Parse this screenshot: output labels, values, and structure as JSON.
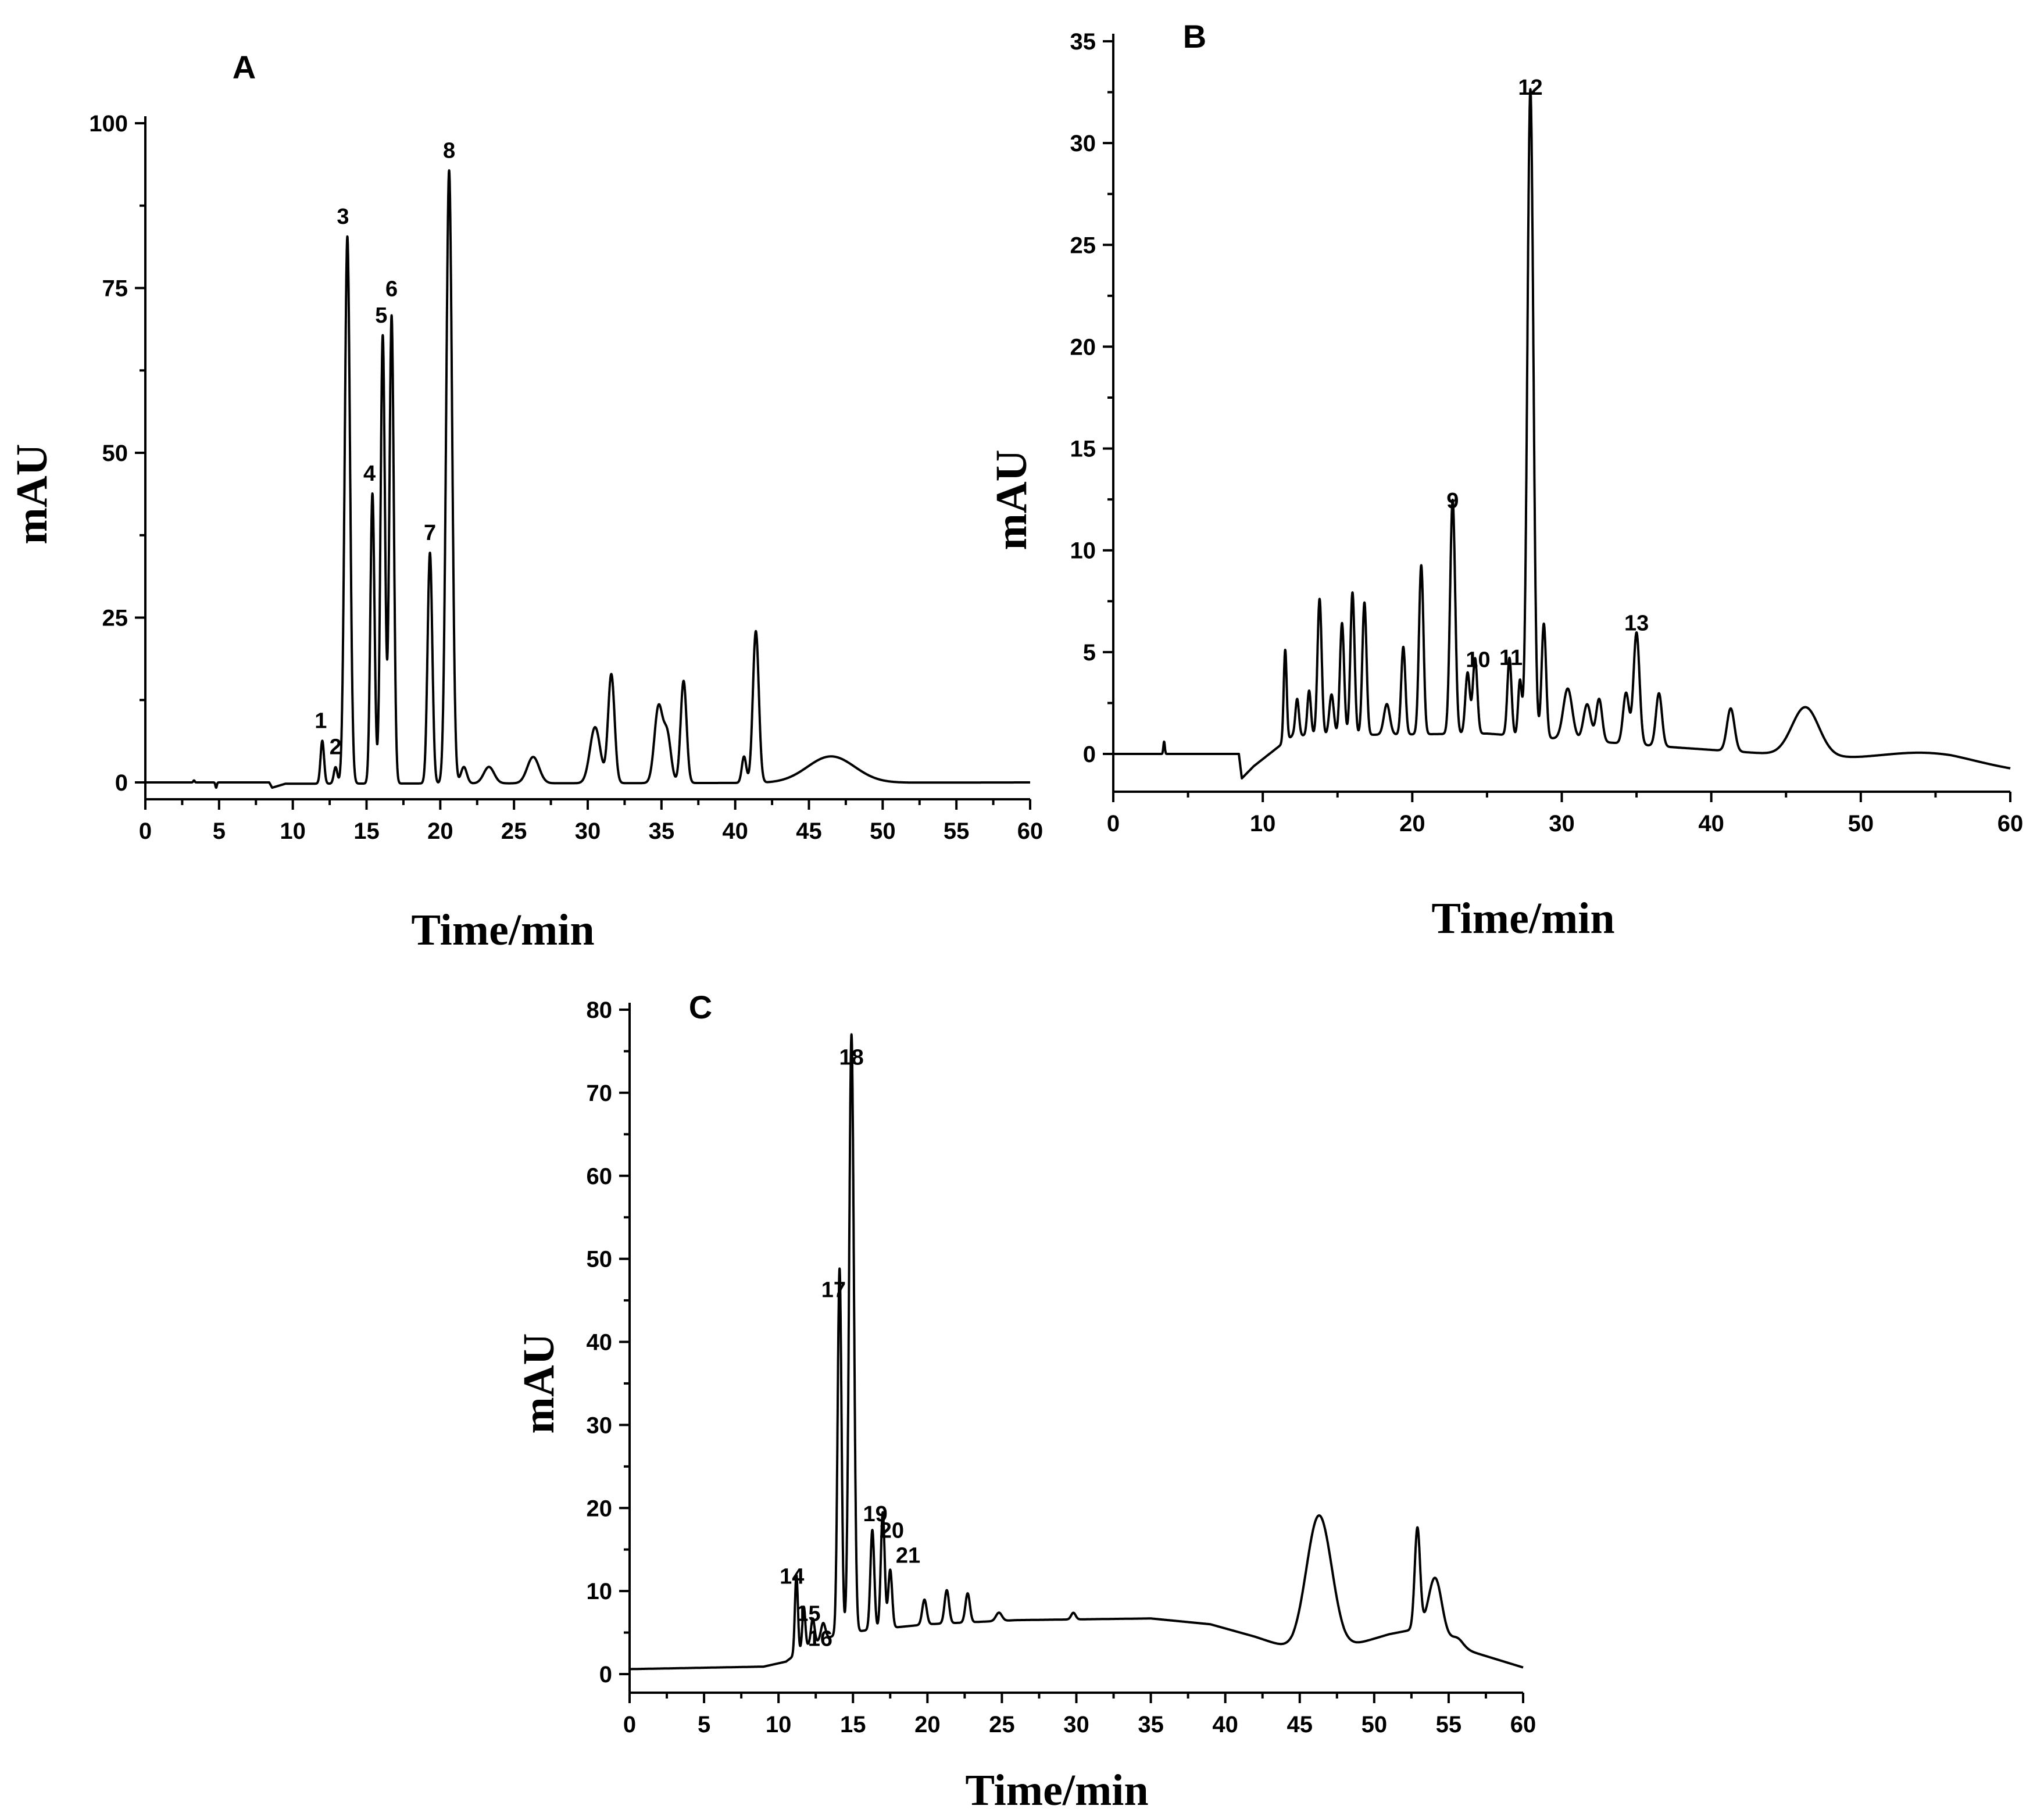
{
  "chart_data": [
    {
      "panel": "A",
      "type": "line",
      "xlabel": "Time/min",
      "ylabel": "mAU",
      "xlim": [
        0,
        60
      ],
      "ylim": [
        -3,
        100
      ],
      "xticks": [
        "0",
        "5",
        "10",
        "15",
        "20",
        "25",
        "30",
        "35",
        "40",
        "45",
        "50",
        "55",
        "60"
      ],
      "yticks": [
        "0",
        "25",
        "50",
        "75",
        "100"
      ],
      "peaks": [
        {
          "x": 3.3,
          "y": 0.3,
          "w": 0.05
        },
        {
          "x": 4.8,
          "y": -0.8,
          "w": 0.05
        },
        {
          "x": 12.0,
          "y": 6.5,
          "w": 0.12
        },
        {
          "x": 12.9,
          "y": 2.5,
          "w": 0.12
        },
        {
          "x": 13.7,
          "y": 83,
          "w": 0.18
        },
        {
          "x": 15.4,
          "y": 44,
          "w": 0.14
        },
        {
          "x": 16.1,
          "y": 68,
          "w": 0.15
        },
        {
          "x": 16.7,
          "y": 71,
          "w": 0.15
        },
        {
          "x": 19.3,
          "y": 35,
          "w": 0.16
        },
        {
          "x": 20.6,
          "y": 93,
          "w": 0.2
        },
        {
          "x": 21.6,
          "y": 2.5,
          "w": 0.2
        },
        {
          "x": 23.3,
          "y": 2.5,
          "w": 0.35
        },
        {
          "x": 26.3,
          "y": 4,
          "w": 0.4
        },
        {
          "x": 30.5,
          "y": 8.5,
          "w": 0.35
        },
        {
          "x": 31.6,
          "y": 16.5,
          "w": 0.22
        },
        {
          "x": 34.8,
          "y": 11.5,
          "w": 0.28
        },
        {
          "x": 35.4,
          "y": 7,
          "w": 0.25
        },
        {
          "x": 36.5,
          "y": 15.5,
          "w": 0.2
        },
        {
          "x": 40.6,
          "y": 4,
          "w": 0.15
        },
        {
          "x": 41.4,
          "y": 23,
          "w": 0.2
        },
        {
          "x": 46.5,
          "y": 4,
          "w": 1.6
        }
      ],
      "baseline": [
        [
          0,
          0
        ],
        [
          8.4,
          0
        ],
        [
          8.6,
          -0.8
        ],
        [
          9.5,
          -0.2
        ],
        [
          60,
          0
        ]
      ],
      "peak_labels": [
        {
          "x": 11.9,
          "y": 6.5,
          "label": "1"
        },
        {
          "x": 12.9,
          "y": 2.5,
          "label": "2"
        },
        {
          "x": 13.4,
          "y": 83,
          "label": "3"
        },
        {
          "x": 15.2,
          "y": 44,
          "label": "4"
        },
        {
          "x": 16.0,
          "y": 68,
          "label": "5"
        },
        {
          "x": 16.7,
          "y": 72,
          "label": "6"
        },
        {
          "x": 19.3,
          "y": 35,
          "label": "7"
        },
        {
          "x": 20.6,
          "y": 93,
          "label": "8"
        }
      ]
    },
    {
      "panel": "B",
      "type": "line",
      "xlabel": "Time/min",
      "ylabel": "mAU",
      "xlim": [
        0,
        60
      ],
      "ylim": [
        -2,
        35
      ],
      "xticks": [
        "0",
        "10",
        "20",
        "30",
        "40",
        "50",
        "60"
      ],
      "yticks": [
        "0",
        "5",
        "10",
        "15",
        "20",
        "25",
        "30",
        "35"
      ],
      "peaks": [
        {
          "x": 3.4,
          "y": 0.6,
          "w": 0.05
        },
        {
          "x": 11.5,
          "y": 4.5,
          "w": 0.1
        },
        {
          "x": 12.3,
          "y": 1.8,
          "w": 0.12
        },
        {
          "x": 13.1,
          "y": 2.2,
          "w": 0.12
        },
        {
          "x": 13.8,
          "y": 6.7,
          "w": 0.14
        },
        {
          "x": 14.6,
          "y": 2.0,
          "w": 0.15
        },
        {
          "x": 15.3,
          "y": 5.5,
          "w": 0.14
        },
        {
          "x": 16.0,
          "y": 7.0,
          "w": 0.14
        },
        {
          "x": 16.8,
          "y": 6.5,
          "w": 0.14
        },
        {
          "x": 18.3,
          "y": 1.5,
          "w": 0.2
        },
        {
          "x": 19.4,
          "y": 4.3,
          "w": 0.14
        },
        {
          "x": 20.6,
          "y": 8.3,
          "w": 0.15
        },
        {
          "x": 22.7,
          "y": 11.5,
          "w": 0.17
        },
        {
          "x": 23.7,
          "y": 3.0,
          "w": 0.15
        },
        {
          "x": 24.2,
          "y": 3.7,
          "w": 0.15
        },
        {
          "x": 26.5,
          "y": 3.8,
          "w": 0.14
        },
        {
          "x": 27.2,
          "y": 2.7,
          "w": 0.12
        },
        {
          "x": 27.9,
          "y": 31.8,
          "w": 0.2
        },
        {
          "x": 28.8,
          "y": 5.6,
          "w": 0.15
        },
        {
          "x": 30.4,
          "y": 2.5,
          "w": 0.3
        },
        {
          "x": 31.7,
          "y": 1.8,
          "w": 0.25
        },
        {
          "x": 32.5,
          "y": 2.1,
          "w": 0.2
        },
        {
          "x": 34.3,
          "y": 2.5,
          "w": 0.2
        },
        {
          "x": 35.0,
          "y": 5.5,
          "w": 0.2
        },
        {
          "x": 36.5,
          "y": 2.6,
          "w": 0.2
        },
        {
          "x": 41.3,
          "y": 2.1,
          "w": 0.25
        },
        {
          "x": 46.3,
          "y": 2.4,
          "w": 0.9
        },
        {
          "x": 54.5,
          "y": 0.5,
          "w": 3.0
        }
      ],
      "baseline": [
        [
          0,
          0
        ],
        [
          8.4,
          0
        ],
        [
          8.6,
          -1.2
        ],
        [
          9.4,
          -0.6
        ],
        [
          12,
          0.9
        ],
        [
          25,
          1.0
        ],
        [
          38,
          0.3
        ],
        [
          44,
          0
        ],
        [
          50,
          -0.3
        ],
        [
          56,
          -0.5
        ],
        [
          60,
          -0.8
        ]
      ],
      "peak_labels": [
        {
          "x": 22.7,
          "y": 11.5,
          "label": "9"
        },
        {
          "x": 24.4,
          "y": 3.7,
          "label": "10"
        },
        {
          "x": 26.6,
          "y": 3.8,
          "label": "11"
        },
        {
          "x": 27.9,
          "y": 31.8,
          "label": "12"
        },
        {
          "x": 35.0,
          "y": 5.5,
          "label": "13"
        }
      ]
    },
    {
      "panel": "C",
      "type": "line",
      "xlabel": "Time/min",
      "ylabel": "mAU",
      "xlim": [
        0,
        60
      ],
      "ylim": [
        -2,
        80
      ],
      "xticks": [
        "0",
        "5",
        "10",
        "15",
        "20",
        "25",
        "30",
        "35",
        "40",
        "45",
        "50",
        "55",
        "60"
      ],
      "yticks": [
        "0",
        "10",
        "20",
        "30",
        "40",
        "50",
        "60",
        "70",
        "80"
      ],
      "peaks": [
        {
          "x": 11.2,
          "y": 9.5,
          "w": 0.1
        },
        {
          "x": 11.7,
          "y": 5.0,
          "w": 0.1
        },
        {
          "x": 12.3,
          "y": 3.0,
          "w": 0.12
        },
        {
          "x": 13.0,
          "y": 2.0,
          "w": 0.15
        },
        {
          "x": 14.1,
          "y": 44,
          "w": 0.13
        },
        {
          "x": 14.9,
          "y": 72,
          "w": 0.16
        },
        {
          "x": 16.3,
          "y": 12,
          "w": 0.13
        },
        {
          "x": 17.0,
          "y": 14,
          "w": 0.13
        },
        {
          "x": 17.5,
          "y": 7,
          "w": 0.13
        },
        {
          "x": 19.8,
          "y": 3.0,
          "w": 0.15
        },
        {
          "x": 21.3,
          "y": 4.0,
          "w": 0.15
        },
        {
          "x": 22.7,
          "y": 3.5,
          "w": 0.15
        },
        {
          "x": 24.8,
          "y": 1.0,
          "w": 0.2
        },
        {
          "x": 29.8,
          "y": 0.8,
          "w": 0.15
        },
        {
          "x": 46.3,
          "y": 16,
          "w": 0.85
        },
        {
          "x": 52.9,
          "y": 12,
          "w": 0.18
        },
        {
          "x": 54.1,
          "y": 7,
          "w": 0.45
        },
        {
          "x": 55.6,
          "y": 1.0,
          "w": 0.4
        }
      ],
      "baseline": [
        [
          0,
          0.6
        ],
        [
          9,
          0.9
        ],
        [
          10.5,
          1.5
        ],
        [
          12,
          3.5
        ],
        [
          14,
          4.8
        ],
        [
          16,
          5.3
        ],
        [
          20,
          6.0
        ],
        [
          26,
          6.5
        ],
        [
          35,
          6.7
        ],
        [
          39,
          6.0
        ],
        [
          42,
          4.5
        ],
        [
          44.5,
          3.0
        ],
        [
          48,
          3.2
        ],
        [
          51,
          4.8
        ],
        [
          53,
          5.5
        ],
        [
          56,
          3.0
        ],
        [
          60,
          0.8
        ]
      ],
      "peak_labels": [
        {
          "x": 10.9,
          "y": 9.5,
          "label": "14"
        },
        {
          "x": 12.0,
          "y": 5.0,
          "label": "15"
        },
        {
          "x": 12.8,
          "y": 2.0,
          "label": "16"
        },
        {
          "x": 13.7,
          "y": 44,
          "label": "17"
        },
        {
          "x": 14.9,
          "y": 72,
          "label": "18"
        },
        {
          "x": 16.5,
          "y": 17,
          "label": "19"
        },
        {
          "x": 17.6,
          "y": 15,
          "label": "20"
        },
        {
          "x": 18.7,
          "y": 12,
          "label": "21"
        }
      ]
    }
  ]
}
